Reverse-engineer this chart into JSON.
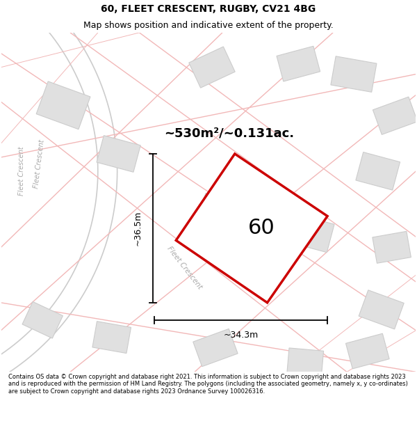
{
  "title": "60, FLEET CRESCENT, RUGBY, CV21 4BG",
  "subtitle": "Map shows position and indicative extent of the property.",
  "copyright": "Contains OS data © Crown copyright and database right 2021. This information is subject to Crown copyright and database rights 2023 and is reproduced with the permission of HM Land Registry. The polygons (including the associated geometry, namely x, y co-ordinates) are subject to Crown copyright and database rights 2023 Ordnance Survey 100026316.",
  "area_label": "~530m²/~0.131ac.",
  "property_number": "60",
  "dim_width_label": "~34.3m",
  "dim_height_label": "~36.5m",
  "road_label_1": "Fleet Crescent",
  "road_label_2": "Fleet Crescent",
  "map_bg": "#f5f5f5",
  "property_color": "#cc0000",
  "building_fill": "#e0e0e0",
  "building_edge": "#cccccc",
  "road_pink": "#f2b8b8",
  "road_gray": "#cccccc",
  "title_fontsize": 10,
  "subtitle_fontsize": 9,
  "copyright_fontsize": 6
}
